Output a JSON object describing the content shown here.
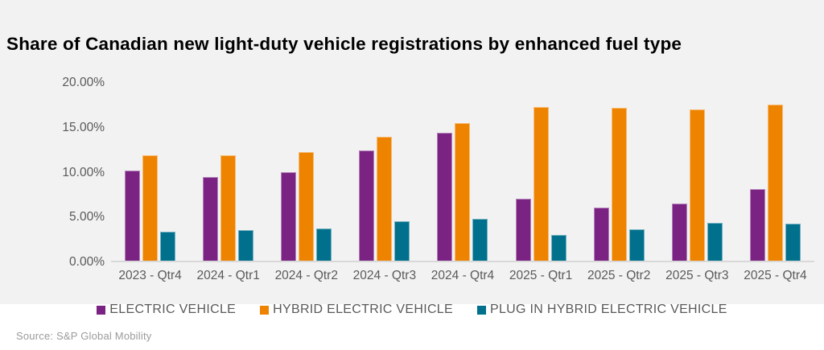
{
  "title": "Share of Canadian new light-duty vehicle registrations by enhanced fuel type",
  "source": "Source: S&P Global Mobility",
  "colors": {
    "panel_bg": "#f2f2f3",
    "axis_line": "#d9d9d9",
    "tick_text": "#595959",
    "legend_text": "#595959",
    "source_text": "#9b9b9b",
    "electric_vehicle": "#7a2383",
    "hybrid_electric_vehicle": "#ee8300",
    "plug_in_hybrid_electric_vehicle": "#00708d"
  },
  "y_axis": {
    "ticks": [
      {
        "label": "20.00%",
        "value": 20
      },
      {
        "label": "15.00%",
        "value": 15
      },
      {
        "label": "10.00%",
        "value": 10
      },
      {
        "label": "5.00%",
        "value": 5
      },
      {
        "label": "0.00%",
        "value": 0
      }
    ]
  },
  "chart_data": {
    "type": "bar",
    "title": "Share of Canadian new light-duty vehicle registrations by enhanced fuel type",
    "xlabel": "",
    "ylabel": "",
    "ylim": [
      0,
      20
    ],
    "grid": false,
    "legend_position": "bottom",
    "categories": [
      "2023 - Qtr4",
      "2024 - Qtr1",
      "2024 - Qtr2",
      "2024 - Qtr3",
      "2024 - Qtr4",
      "2025 - Qtr1",
      "2025 - Qtr2",
      "2025 - Qtr3",
      "2025 - Qtr4"
    ],
    "series": [
      {
        "name": "ELECTRIC VEHICLE",
        "color": "#7a2383",
        "values": [
          10.1,
          9.4,
          10.0,
          12.4,
          14.4,
          7.0,
          6.0,
          6.4,
          8.1
        ]
      },
      {
        "name": "HYBRID ELECTRIC VEHICLE",
        "color": "#ee8300",
        "values": [
          11.9,
          11.9,
          12.2,
          13.9,
          15.5,
          17.3,
          17.2,
          17.0,
          17.6
        ]
      },
      {
        "name": "PLUG IN HYBRID ELECTRIC VEHICLE",
        "color": "#00708d",
        "values": [
          3.3,
          3.4,
          3.6,
          4.4,
          4.7,
          2.9,
          3.5,
          4.3,
          4.2
        ]
      }
    ]
  }
}
